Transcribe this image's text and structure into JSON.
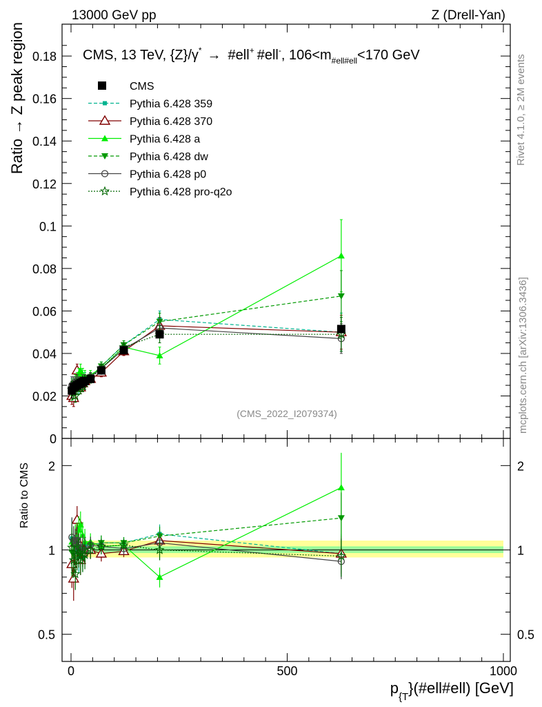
{
  "header": {
    "energy": "13000 GeV pp",
    "process": "Z (Drell-Yan)"
  },
  "side": {
    "rivet": "Rivet 4.1.0, ≥ 2M events",
    "mcplots": "mcplots.cern.ch [arXiv:1306.3436]"
  },
  "analysis_id": "(CMS_2022_I2079374)",
  "colors": {
    "359": "#00b38f",
    "370": "#800000",
    "a": "#00ee00",
    "dw": "#009900",
    "p0": "#444444",
    "pro": "#006600",
    "band_outer": "#ffff99",
    "band_inner": "#99ff99"
  },
  "chart_data": [
    {
      "type": "line",
      "title": "CMS, 13 TeV, {Z}/γ* → #ell⁺ #ell⁻, 106<m_{#ell#ell}<170 GeV",
      "title_parts": {
        "pre": "CMS, 13 TeV, {Z}/γ",
        "star": "*",
        "arrow": "→",
        "l1": "#ell",
        "plus": "+",
        "l2": "#ell",
        "minus": "-",
        "mid": ", 106<m",
        "sub": "#ell#ell",
        "post": "<170 GeV"
      },
      "ylabel": "Ratio → Z peak region",
      "xlabel": "p_{T}(#ell#ell) [GeV]",
      "xlabel_parts": {
        "p": "p",
        "sub": "{T",
        "rest": "}(#ell#ell) [GeV]"
      },
      "xlim": [
        0,
        1000
      ],
      "ylim": [
        0,
        0.195
      ],
      "yticks": [
        0,
        0.02,
        0.04,
        0.06,
        0.08,
        0.1,
        0.12,
        0.14,
        0.16,
        0.18
      ],
      "ytick_labels": [
        "0",
        "0.02",
        "0.04",
        "0.06",
        "0.08",
        "0.1",
        "0.12",
        "0.14",
        "0.16",
        "0.18"
      ],
      "xticks": [
        0,
        500,
        1000
      ],
      "xtick_labels": [
        "0",
        "500",
        "1000"
      ],
      "legend_position": "top-left",
      "x": [
        2,
        6,
        10,
        14,
        18,
        22,
        27,
        32,
        45,
        70,
        122,
        205,
        625
      ],
      "data": {
        "name": "CMS",
        "values": [
          0.0225,
          0.024,
          0.0245,
          0.025,
          0.0255,
          0.026,
          0.0265,
          0.027,
          0.028,
          0.032,
          0.0415,
          0.049,
          0.0515
        ],
        "errors": [
          0.004,
          0.003,
          0.003,
          0.003,
          0.003,
          0.003,
          0.003,
          0.003,
          0.002,
          0.002,
          0.002,
          0.002,
          0.002
        ]
      },
      "series": [
        {
          "key": "359",
          "name": "Pythia 6.428 359",
          "style": "dashed",
          "marker": "square-small",
          "values": [
            0.025,
            0.025,
            0.024,
            0.026,
            0.024,
            0.027,
            0.025,
            0.028,
            0.029,
            0.034,
            0.044,
            0.056,
            0.05
          ],
          "errors": [
            0.004,
            0.003,
            0.003,
            0.003,
            0.003,
            0.003,
            0.003,
            0.003,
            0.002,
            0.002,
            0.002,
            0.004,
            0.009
          ]
        },
        {
          "key": "370",
          "name": "Pythia 6.428 370",
          "style": "solid",
          "marker": "triangle-open",
          "values": [
            0.02,
            0.019,
            0.026,
            0.032,
            0.027,
            0.024,
            0.026,
            0.027,
            0.028,
            0.031,
            0.041,
            0.053,
            0.05
          ],
          "errors": [
            0.004,
            0.004,
            0.003,
            0.003,
            0.003,
            0.003,
            0.003,
            0.003,
            0.002,
            0.002,
            0.002,
            0.004,
            0.008
          ]
        },
        {
          "key": "a",
          "name": "Pythia 6.428 a",
          "style": "solid",
          "marker": "triangle-filled",
          "values": [
            0.024,
            0.026,
            0.027,
            0.028,
            0.03,
            0.032,
            0.03,
            0.029,
            0.03,
            0.033,
            0.043,
            0.039,
            0.086
          ],
          "errors": [
            0.004,
            0.003,
            0.003,
            0.003,
            0.003,
            0.003,
            0.003,
            0.003,
            0.002,
            0.002,
            0.002,
            0.004,
            0.017
          ]
        },
        {
          "key": "dw",
          "name": "Pythia 6.428 dw",
          "style": "dashed",
          "marker": "triangle-down-filled",
          "values": [
            0.022,
            0.023,
            0.025,
            0.027,
            0.026,
            0.025,
            0.026,
            0.027,
            0.029,
            0.034,
            0.044,
            0.055,
            0.067
          ],
          "errors": [
            0.004,
            0.003,
            0.003,
            0.003,
            0.003,
            0.003,
            0.003,
            0.003,
            0.002,
            0.002,
            0.002,
            0.004,
            0.012
          ]
        },
        {
          "key": "p0",
          "name": "Pythia 6.428 p0",
          "style": "solid",
          "marker": "circle-open",
          "values": [
            0.025,
            0.026,
            0.026,
            0.027,
            0.026,
            0.026,
            0.027,
            0.027,
            0.029,
            0.033,
            0.042,
            0.052,
            0.047
          ],
          "errors": [
            0.004,
            0.003,
            0.003,
            0.003,
            0.003,
            0.003,
            0.003,
            0.003,
            0.002,
            0.002,
            0.002,
            0.004,
            0.007
          ]
        },
        {
          "key": "pro",
          "name": "Pythia 6.428 pro-q2o",
          "style": "dotted",
          "marker": "star-open",
          "values": [
            0.023,
            0.022,
            0.02,
            0.024,
            0.025,
            0.024,
            0.025,
            0.026,
            0.028,
            0.033,
            0.043,
            0.049,
            0.049
          ],
          "errors": [
            0.004,
            0.003,
            0.003,
            0.003,
            0.003,
            0.003,
            0.003,
            0.003,
            0.002,
            0.002,
            0.002,
            0.004,
            0.008
          ]
        }
      ]
    },
    {
      "type": "line",
      "title": "",
      "ylabel": "Ratio to CMS",
      "xlim": [
        0,
        1000
      ],
      "ylim": [
        0.4,
        2.5
      ],
      "yscale": "log",
      "yticks": [
        0.5,
        1,
        2
      ],
      "ytick_labels": [
        "0.5",
        "1",
        "2"
      ],
      "band": {
        "x_range": [
          0,
          1000
        ],
        "outer": [
          0.94,
          1.08
        ],
        "inner": [
          0.975,
          1.03
        ]
      },
      "x": [
        2,
        6,
        10,
        14,
        18,
        22,
        27,
        32,
        45,
        70,
        122,
        205,
        625
      ],
      "series": [
        {
          "key": "359",
          "values": [
            1.1,
            1.04,
            0.98,
            1.04,
            0.94,
            1.04,
            0.94,
            1.04,
            1.04,
            1.06,
            1.06,
            1.14,
            0.97
          ]
        },
        {
          "key": "370",
          "values": [
            0.89,
            0.79,
            1.06,
            1.28,
            1.06,
            0.92,
            0.98,
            1.0,
            1.0,
            0.97,
            0.99,
            1.08,
            0.97
          ]
        },
        {
          "key": "a",
          "values": [
            1.07,
            1.08,
            1.1,
            1.12,
            1.18,
            1.23,
            1.13,
            1.07,
            1.07,
            1.03,
            1.04,
            0.8,
            1.67
          ]
        },
        {
          "key": "dw",
          "values": [
            0.98,
            0.96,
            1.02,
            1.08,
            1.02,
            0.96,
            0.98,
            1.0,
            1.04,
            1.06,
            1.06,
            1.12,
            1.3
          ]
        },
        {
          "key": "p0",
          "values": [
            1.11,
            1.08,
            1.06,
            1.08,
            1.02,
            1.0,
            1.02,
            1.0,
            1.04,
            1.03,
            1.01,
            1.06,
            0.91
          ]
        },
        {
          "key": "pro",
          "values": [
            1.02,
            0.92,
            0.82,
            0.96,
            0.98,
            0.92,
            0.94,
            0.96,
            1.0,
            1.03,
            1.04,
            1.0,
            0.95
          ]
        }
      ]
    }
  ]
}
